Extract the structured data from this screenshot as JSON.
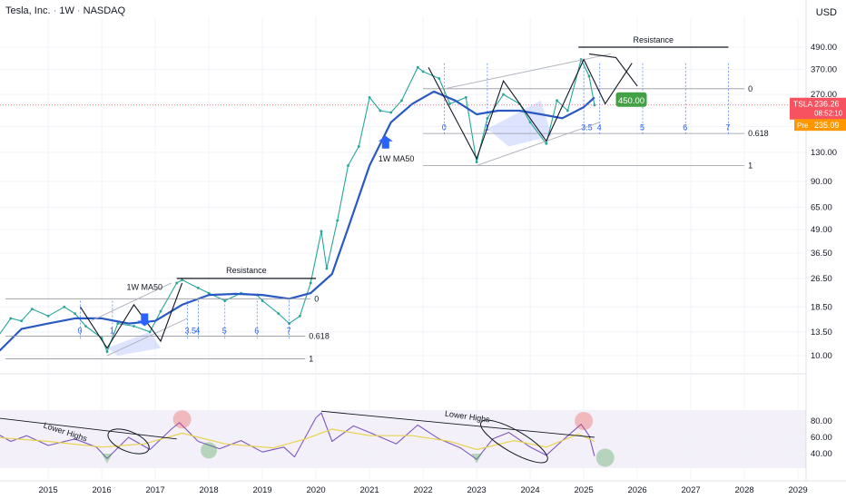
{
  "header": {
    "symbol": "Tesla, Inc.",
    "interval": "1W",
    "exchange": "NASDAQ",
    "currency": "USD"
  },
  "chart_data": {
    "type": "line",
    "price_axis": {
      "scale": "log",
      "ticks": [
        "490.00",
        "370.00",
        "270.00",
        "180.00",
        "130.00",
        "90.00",
        "65.00",
        "49.00",
        "36.50",
        "26.50",
        "18.50",
        "13.50",
        "10.00"
      ]
    },
    "rsi_axis": {
      "ticks": [
        "80.00",
        "60.00",
        "40.00"
      ]
    },
    "x_axis": {
      "ticks": [
        "2015",
        "2016",
        "2017",
        "2018",
        "2019",
        "2020",
        "2021",
        "2022",
        "2023",
        "2024",
        "2025",
        "2026",
        "2027",
        "2028",
        "2029"
      ]
    },
    "last_price": {
      "value": "236.26",
      "label": "TSLA",
      "countdown": "08:52:10"
    },
    "pre_market": {
      "label": "Pre",
      "value": "235.09"
    },
    "target": "450.00",
    "annotations": {
      "resistance_label": "Resistance",
      "ma_label": "1W MA50",
      "lower_highs_label": "Lower Highs",
      "fib_0": "0",
      "fib_0618": "0.618",
      "fib_1": "1",
      "fib_ext_1": [
        "0",
        "1",
        "3.5",
        "4",
        "5",
        "6",
        "7"
      ],
      "fib_ext_2": [
        "0",
        "1",
        "3.5",
        "4",
        "5",
        "6",
        "7"
      ]
    },
    "series": [
      {
        "name": "TSLA",
        "color": "#26a69a",
        "x": [
          2014.0,
          2014.3,
          2014.5,
          2014.7,
          2015.0,
          2015.3,
          2015.5,
          2015.7,
          2016.0,
          2016.1,
          2016.3,
          2016.6,
          2016.9,
          2017.1,
          2017.4,
          2017.5,
          2017.8,
          2018.0,
          2018.3,
          2018.6,
          2018.9,
          2019.0,
          2019.3,
          2019.5,
          2019.7,
          2019.9,
          2020.1,
          2020.2,
          2020.4,
          2020.6,
          2020.8,
          2021.0,
          2021.2,
          2021.4,
          2021.6,
          2021.9,
          2022.0,
          2022.3,
          2022.5,
          2022.8,
          2023.0,
          2023.2,
          2023.5,
          2023.8,
          2024.0,
          2024.3,
          2024.5,
          2024.7,
          2024.95,
          2025.1,
          2025.2
        ],
        "values": [
          12.0,
          16.0,
          15.5,
          18.0,
          16.5,
          18.5,
          17.0,
          14.5,
          12.5,
          10.5,
          15.0,
          14.5,
          13.5,
          17.5,
          25.0,
          26.0,
          23.5,
          22.0,
          20.0,
          22.0,
          21.5,
          20.0,
          17.0,
          15.0,
          16.5,
          25.0,
          48.0,
          30.0,
          55.0,
          110.0,
          140.0,
          260.0,
          220.0,
          215.0,
          250.0,
          380.0,
          360.0,
          330.0,
          240.0,
          260.0,
          115.0,
          200.0,
          270.0,
          240.0,
          190.0,
          145.0,
          250.0,
          220.0,
          420.0,
          340.0,
          236.0
        ]
      },
      {
        "name": "1W MA50",
        "color": "#2b59c3",
        "x": [
          2014.0,
          2014.5,
          2015.0,
          2015.5,
          2016.0,
          2016.5,
          2017.0,
          2017.5,
          2018.0,
          2018.5,
          2019.0,
          2019.5,
          2019.9,
          2020.3,
          2020.6,
          2021.0,
          2021.4,
          2021.8,
          2022.2,
          2022.6,
          2023.0,
          2023.4,
          2023.8,
          2024.2,
          2024.6,
          2025.0,
          2025.2
        ],
        "values": [
          10.0,
          14.0,
          15.0,
          16.0,
          16.0,
          15.0,
          15.5,
          19.0,
          21.5,
          21.8,
          21.5,
          20.5,
          22.0,
          28.0,
          50.0,
          110.0,
          190.0,
          240.0,
          280.0,
          250.0,
          210.0,
          220.0,
          220.0,
          210.0,
          200.0,
          230.0,
          260.0
        ]
      },
      {
        "name": "RSI",
        "color": "#7e57c2",
        "x": [
          2014.0,
          2014.3,
          2014.6,
          2015.0,
          2015.5,
          2015.9,
          2016.1,
          2016.5,
          2016.9,
          2017.3,
          2017.45,
          2017.8,
          2018.2,
          2018.6,
          2019.0,
          2019.4,
          2019.6,
          2020.0,
          2020.1,
          2020.3,
          2020.7,
          2021.0,
          2021.5,
          2021.9,
          2022.3,
          2022.7,
          2023.0,
          2023.3,
          2023.6,
          2024.0,
          2024.3,
          2024.6,
          2024.95,
          2025.1,
          2025.2
        ],
        "values": [
          66.0,
          55.0,
          62.0,
          50.0,
          58.0,
          48.0,
          34.0,
          60.0,
          45.0,
          70.0,
          78.0,
          55.0,
          46.0,
          56.0,
          42.0,
          48.0,
          36.0,
          84.0,
          90.0,
          55.0,
          74.0,
          66.0,
          52.0,
          75.0,
          58.0,
          47.0,
          33.0,
          58.0,
          66.0,
          48.0,
          38.0,
          56.0,
          76.0,
          62.0,
          37.0
        ]
      },
      {
        "name": "RSI MA",
        "color": "#e8d34f",
        "x": [
          2014.0,
          2015.0,
          2016.0,
          2016.8,
          2017.5,
          2018.3,
          2019.2,
          2019.8,
          2020.3,
          2021.0,
          2021.8,
          2022.5,
          2023.0,
          2023.7,
          2024.3,
          2024.9,
          2025.2
        ],
        "values": [
          60.0,
          55.0,
          48.0,
          52.0,
          65.0,
          52.0,
          47.0,
          58.0,
          70.0,
          62.0,
          62.0,
          55.0,
          45.0,
          56.0,
          48.0,
          64.0,
          55.0
        ]
      }
    ]
  }
}
